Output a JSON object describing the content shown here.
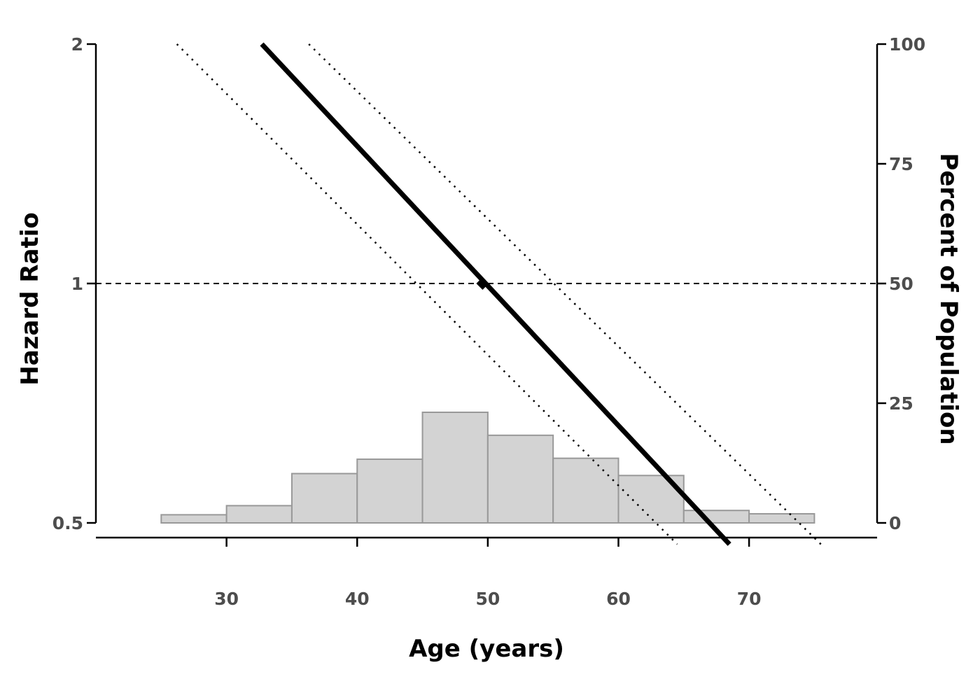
{
  "chart_data": {
    "type": "line",
    "xlabel": "Age (years)",
    "ylabel": "Hazard Ratio",
    "ylabel_right": "Percent of Population",
    "x_ticks": [
      30,
      40,
      50,
      60,
      70
    ],
    "y_ticks": [
      {
        "value": 0.5,
        "label": "0.5"
      },
      {
        "value": 1,
        "label": "1"
      },
      {
        "value": 2,
        "label": "2"
      }
    ],
    "y_right_ticks": [
      0,
      25,
      50,
      75,
      100
    ],
    "xlim": [
      20,
      79.8
    ],
    "ylim": [
      0.5,
      2
    ],
    "y_scale": "log",
    "y_right_lim": [
      0,
      100
    ],
    "reference_line": {
      "y": 1,
      "style": "dashed"
    },
    "series": [
      {
        "role": "estimate",
        "style": "solid",
        "x": [
          32.7,
          68.5
        ],
        "y": [
          2.0,
          0.47
        ]
      },
      {
        "role": "upper-ci",
        "style": "dotted",
        "x": [
          36.3,
          75.5
        ],
        "y": [
          2.0,
          0.47
        ]
      },
      {
        "role": "lower-ci",
        "style": "dotted",
        "x": [
          26.2,
          64.5
        ],
        "y": [
          2.0,
          0.47
        ]
      }
    ],
    "point": {
      "x": 49.6,
      "y": 1.0
    },
    "histogram": {
      "bins": [
        [
          25,
          30
        ],
        [
          30,
          35
        ],
        [
          35,
          40
        ],
        [
          40,
          45
        ],
        [
          45,
          50
        ],
        [
          50,
          55
        ],
        [
          55,
          60
        ],
        [
          60,
          65
        ],
        [
          65,
          70
        ],
        [
          70,
          75
        ]
      ],
      "percent": [
        1.7,
        3.6,
        10.3,
        13.3,
        23.1,
        18.3,
        13.5,
        9.9,
        2.6,
        1.9
      ],
      "color": "#d3d3d3",
      "border_color": "#999999"
    },
    "grid": false,
    "legend": "none"
  }
}
